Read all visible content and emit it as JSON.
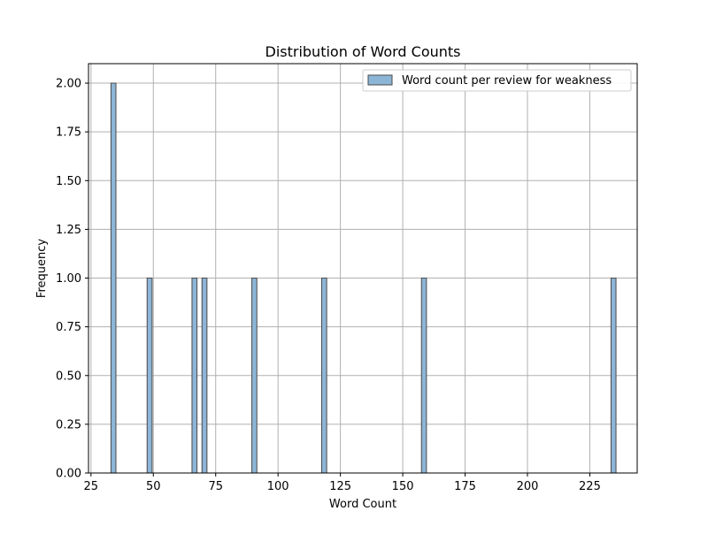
{
  "chart_data": {
    "type": "histogram",
    "title": "Distribution of Word Counts",
    "xlabel": "Word Count",
    "ylabel": "Frequency",
    "xlim": [
      24.0,
      244.0
    ],
    "ylim": [
      0,
      2.1
    ],
    "x_ticks": [
      25,
      50,
      75,
      100,
      125,
      150,
      175,
      200,
      225
    ],
    "x_tick_labels": [
      "25",
      "50",
      "75",
      "100",
      "125",
      "150",
      "175",
      "200",
      "225"
    ],
    "y_ticks": [
      0,
      0.25,
      0.5,
      0.75,
      1.0,
      1.25,
      1.5,
      1.75,
      2.0
    ],
    "y_tick_labels": [
      "0.00",
      "0.25",
      "0.50",
      "0.75",
      "1.00",
      "1.25",
      "1.50",
      "1.75",
      "2.00"
    ],
    "grid": true,
    "legend": {
      "position": "upper right",
      "entries": [
        "Word count per review for weakness"
      ]
    },
    "series": [
      {
        "name": "Word count per review for weakness",
        "color": "#1f77b4",
        "bar_fill": "#8cb5d6",
        "edge_color": "#4a4a4a",
        "bars": [
          {
            "x0": 33.0,
            "x1": 35.0,
            "value": 2
          },
          {
            "x0": 47.5,
            "x1": 49.5,
            "value": 1
          },
          {
            "x0": 65.5,
            "x1": 67.5,
            "value": 1
          },
          {
            "x0": 69.5,
            "x1": 71.5,
            "value": 1
          },
          {
            "x0": 89.5,
            "x1": 91.5,
            "value": 1
          },
          {
            "x0": 117.5,
            "x1": 119.5,
            "value": 1
          },
          {
            "x0": 157.5,
            "x1": 159.5,
            "value": 1
          },
          {
            "x0": 233.5,
            "x1": 235.5,
            "value": 1
          }
        ]
      }
    ]
  }
}
